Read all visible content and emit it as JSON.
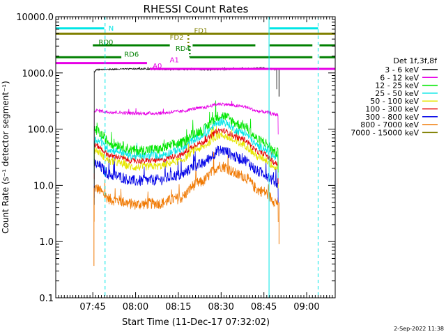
{
  "chart_data": {
    "type": "line",
    "title": "RHESSI Count Rates",
    "xlabel": "Start Time (11-Dec-17 07:32:02)",
    "ylabel": "Count Rate (s⁻¹ detector segment⁻¹)",
    "yscale": "log",
    "ylim": [
      0.1,
      10000
    ],
    "xlim_minutes": [
      0,
      98
    ],
    "x_ticks": [
      {
        "label": "07:45",
        "min": 12.97
      },
      {
        "label": "08:00",
        "min": 27.97
      },
      {
        "label": "08:15",
        "min": 42.97
      },
      {
        "label": "08:30",
        "min": 57.97
      },
      {
        "label": "08:45",
        "min": 72.97
      },
      {
        "label": "09:00",
        "min": 87.97
      }
    ],
    "y_ticks": [
      {
        "label": "0.1",
        "value": 0.1
      },
      {
        "label": "1.0",
        "value": 1
      },
      {
        "label": "10.0",
        "value": 10
      },
      {
        "label": "100.0",
        "value": 100
      },
      {
        "label": "1000.0",
        "value": 1000
      },
      {
        "label": "10000.0",
        "value": 10000
      }
    ],
    "legend_title": "Det 1f,3f,8f",
    "legend_placement": "right",
    "series": [
      {
        "name": "3 - 6 keV",
        "color": "#000000",
        "t": [
          13.5,
          14.5,
          28,
          43,
          58,
          66,
          72,
          77.5
        ],
        "v": [
          1050,
          1150,
          1180,
          1150,
          1150,
          1190,
          1230,
          1150
        ],
        "noise": 0.012,
        "sharp_start": true
      },
      {
        "name": "6 - 12 keV",
        "color": "#e600e6",
        "t": [
          13.5,
          20,
          28,
          36,
          43,
          50,
          58,
          65,
          72,
          78
        ],
        "v": [
          215,
          200,
          190,
          192,
          205,
          235,
          280,
          255,
          205,
          180
        ],
        "noise": 0.03,
        "sharp_start": false
      },
      {
        "name": "12 - 25 keV",
        "color": "#00e600",
        "t": [
          13.5,
          20,
          28,
          36,
          43,
          50,
          58,
          65,
          72,
          78
        ],
        "v": [
          95,
          55,
          42,
          44,
          55,
          90,
          175,
          120,
          62,
          38
        ],
        "noise": 0.09,
        "sharp_start": false
      },
      {
        "name": "25 - 50 keV",
        "color": "#00e6e6",
        "t": [
          13.5,
          20,
          28,
          36,
          43,
          50,
          58,
          65,
          72,
          78
        ],
        "v": [
          65,
          42,
          33,
          34,
          42,
          70,
          135,
          90,
          48,
          30
        ],
        "noise": 0.07,
        "sharp_start": false
      },
      {
        "name": "50 - 100 keV",
        "color": "#e6e600",
        "t": [
          13.5,
          20,
          28,
          36,
          43,
          50,
          58,
          65,
          72,
          78
        ],
        "v": [
          42,
          26,
          21,
          22,
          27,
          45,
          78,
          55,
          31,
          20
        ],
        "noise": 0.07,
        "sharp_start": false
      },
      {
        "name": "100 - 300 keV",
        "color": "#e60000",
        "t": [
          13.5,
          20,
          28,
          36,
          43,
          50,
          58,
          65,
          72,
          78
        ],
        "v": [
          52,
          33,
          27,
          28,
          34,
          55,
          95,
          68,
          38,
          24
        ],
        "noise": 0.05,
        "sharp_start": false
      },
      {
        "name": "300 - 800 keV",
        "color": "#0000e6",
        "t": [
          13.5,
          20,
          28,
          36,
          43,
          50,
          58,
          65,
          72,
          78
        ],
        "v": [
          24,
          15,
          12,
          12.5,
          15,
          23,
          42,
          30,
          17,
          11
        ],
        "noise": 0.1,
        "sharp_start": false
      },
      {
        "name": "800 - 7000 keV",
        "color": "#f07800",
        "t": [
          13.5,
          20,
          28,
          36,
          43,
          50,
          58,
          65,
          72,
          78
        ],
        "v": [
          9,
          5.5,
          4.6,
          4.8,
          5.8,
          11,
          22,
          15,
          8,
          5
        ],
        "noise": 0.1,
        "sharp_start": false
      },
      {
        "name": "7000 - 15000 keV",
        "color": "#808000",
        "t": [],
        "v": [],
        "noise": 0,
        "sharp_start": false
      }
    ],
    "flags": [
      {
        "label": "N",
        "color": "#00e6e6",
        "segments": [
          [
            0,
            17
          ],
          [
            75,
            92
          ]
        ],
        "y": 6200,
        "label_at": 18.5
      },
      {
        "label": "FD1",
        "color": "#808000",
        "segments": [
          [
            0,
            98
          ]
        ],
        "y": 5000,
        "label_at": 48.5
      },
      {
        "label": "FD2",
        "color": "#808000",
        "segments": [
          [
            46.5,
            47.5
          ]
        ],
        "y": 3800,
        "label_at": 40
      },
      {
        "label": "RD0",
        "color": "#008000",
        "segments": [
          [
            13,
            40
          ],
          [
            48,
            70
          ],
          [
            75,
            90
          ],
          [
            92.5,
            98
          ]
        ],
        "y": 3100,
        "label_at": 15
      },
      {
        "label": "RD4",
        "color": "#008000",
        "segments": [
          [
            47,
            48
          ]
        ],
        "y": 2400,
        "label_at": 42
      },
      {
        "label": "RD6",
        "color": "#008000",
        "segments": [
          [
            0,
            23
          ],
          [
            47,
            90
          ],
          [
            92.5,
            98
          ]
        ],
        "y": 1900,
        "label_at": 24
      },
      {
        "label": "A1",
        "color": "#e600e6",
        "segments": [
          [
            0,
            32
          ]
        ],
        "y": 1500,
        "label_at": 40
      },
      {
        "label": "A0",
        "color": "#e600e6",
        "segments": [
          [
            33,
            98
          ]
        ],
        "y": 1180,
        "label_at": 34
      }
    ],
    "v_lines": [
      {
        "min": 0.0,
        "color": "#00e6e6",
        "style": "solid"
      },
      {
        "min": 17.3,
        "color": "#00e6e6",
        "style": "dashed"
      },
      {
        "min": 74.8,
        "color": "#00e6e6",
        "style": "solid"
      },
      {
        "min": 92.0,
        "color": "#00e6e6",
        "style": "dashed"
      }
    ],
    "footer_timestamp": "2-Sep-2022 11:38"
  }
}
